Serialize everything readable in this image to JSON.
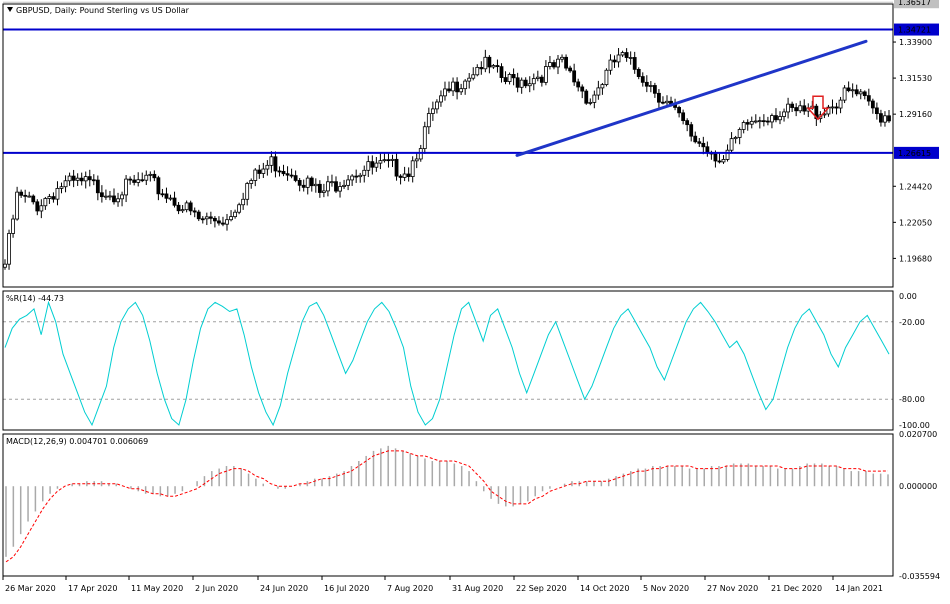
{
  "chart_data": [
    {
      "type": "candlestick",
      "title": "GBPUSD, Daily:  Pound Sterling vs US Dollar",
      "timeframe": "Daily",
      "ylim": [
        1.178,
        1.364
      ],
      "y_ticks": [
        "1.33900",
        "1.31530",
        "1.29160",
        "1.24420",
        "1.22050",
        "1.19680"
      ],
      "current_price": "1.36517",
      "horizontal_levels": [
        {
          "label": "1.34721",
          "value": 1.34721,
          "color": "#0000CC"
        },
        {
          "label": "1.26615",
          "value": 1.26615,
          "color": "#0000CC"
        }
      ],
      "trendline": {
        "from": {
          "x": "22 Sep 2020",
          "y": 1.2645
        },
        "to": {
          "x": "28 Jan 2021",
          "y": 1.3395
        },
        "color": "#1F35C8"
      },
      "down_arrow": {
        "x": "4 Jan 2021",
        "y": 1.2955,
        "color": "#E02020"
      },
      "bar_count": 220,
      "close_anchors": [
        [
          0,
          1.196
        ],
        [
          3,
          1.24
        ],
        [
          8,
          1.235
        ],
        [
          14,
          1.248
        ],
        [
          20,
          1.249
        ],
        [
          27,
          1.243
        ],
        [
          35,
          1.251
        ],
        [
          42,
          1.238
        ],
        [
          48,
          1.225
        ],
        [
          55,
          1.226
        ],
        [
          60,
          1.248
        ],
        [
          66,
          1.263
        ],
        [
          72,
          1.256
        ],
        [
          78,
          1.242
        ],
        [
          86,
          1.257
        ],
        [
          94,
          1.26
        ],
        [
          100,
          1.258
        ],
        [
          106,
          1.296
        ],
        [
          112,
          1.315
        ],
        [
          118,
          1.328
        ],
        [
          124,
          1.316
        ],
        [
          130,
          1.318
        ],
        [
          138,
          1.327
        ],
        [
          145,
          1.304
        ],
        [
          152,
          1.333
        ],
        [
          158,
          1.32
        ],
        [
          164,
          1.302
        ],
        [
          170,
          1.28
        ],
        [
          178,
          1.265
        ],
        [
          184,
          1.288
        ],
        [
          190,
          1.296
        ],
        [
          196,
          1.295
        ],
        [
          202,
          1.297
        ],
        [
          210,
          1.309
        ],
        [
          216,
          1.295
        ],
        [
          219,
          1.294
        ]
      ]
    },
    {
      "type": "line",
      "title": "%R(14) -44.73",
      "series": [
        {
          "name": "%R(14)",
          "color": "#00CED1"
        }
      ],
      "ylim": [
        -100,
        0
      ],
      "levels": [
        -20,
        -80
      ],
      "y_ticks": [
        "0.00",
        "-20.00",
        "-80.00",
        "-100.00"
      ],
      "values": [
        -40,
        -25,
        -18,
        -15,
        -10,
        -30,
        -5,
        -20,
        -45,
        -60,
        -75,
        -90,
        -100,
        -85,
        -70,
        -40,
        -20,
        -10,
        -5,
        -15,
        -35,
        -60,
        -80,
        -95,
        -100,
        -80,
        -50,
        -25,
        -10,
        -5,
        -8,
        -12,
        -10,
        -30,
        -55,
        -75,
        -90,
        -100,
        -85,
        -60,
        -40,
        -20,
        -8,
        -5,
        -15,
        -30,
        -45,
        -60,
        -50,
        -35,
        -20,
        -10,
        -5,
        -12,
        -25,
        -40,
        -70,
        -90,
        -100,
        -95,
        -80,
        -55,
        -30,
        -10,
        -5,
        -20,
        -35,
        -15,
        -10,
        -25,
        -40,
        -60,
        -75,
        -60,
        -45,
        -30,
        -20,
        -35,
        -50,
        -65,
        -80,
        -70,
        -55,
        -40,
        -25,
        -15,
        -10,
        -20,
        -30,
        -40,
        -55,
        -65,
        -50,
        -35,
        -20,
        -10,
        -5,
        -12,
        -20,
        -30,
        -40,
        -35,
        -45,
        -60,
        -75,
        -88,
        -80,
        -60,
        -40,
        -25,
        -15,
        -10,
        -20,
        -30,
        -45,
        -55,
        -40,
        -30,
        -20,
        -15,
        -25,
        -35,
        -45
      ]
    },
    {
      "type": "bar+line",
      "title": "MACD(12,26,9) 0.004701 0.006069",
      "series": [
        {
          "name": "MACD",
          "style": "histogram",
          "color": "#A9A9A9"
        },
        {
          "name": "Signal",
          "style": "dotted-line",
          "color": "#FF0000"
        }
      ],
      "ylim": [
        -0.035594,
        0.0207
      ],
      "y_ticks": [
        "0.020700",
        "0.000000",
        "-0.035594"
      ],
      "macd_values": [
        -0.028,
        -0.024,
        -0.019,
        -0.014,
        -0.01,
        -0.006,
        -0.003,
        -0.001,
        0.0,
        0.001,
        0.001,
        0.002,
        0.002,
        0.002,
        0.001,
        0.001,
        0.0,
        -0.001,
        -0.002,
        -0.003,
        -0.003,
        -0.004,
        -0.004,
        -0.003,
        -0.002,
        0.0,
        0.002,
        0.004,
        0.006,
        0.007,
        0.008,
        0.008,
        0.007,
        0.005,
        0.003,
        0.001,
        0.0,
        -0.001,
        -0.001,
        0.0,
        0.001,
        0.002,
        0.003,
        0.003,
        0.004,
        0.005,
        0.006,
        0.008,
        0.01,
        0.012,
        0.014,
        0.015,
        0.016,
        0.015,
        0.014,
        0.013,
        0.012,
        0.011,
        0.01,
        0.01,
        0.01,
        0.009,
        0.008,
        0.006,
        0.002,
        -0.002,
        -0.005,
        -0.007,
        -0.008,
        -0.008,
        -0.007,
        -0.006,
        -0.004,
        -0.002,
        -0.001,
        0.0,
        0.001,
        0.002,
        0.002,
        0.002,
        0.002,
        0.002,
        0.003,
        0.004,
        0.005,
        0.006,
        0.007,
        0.007,
        0.008,
        0.008,
        0.008,
        0.008,
        0.008,
        0.007,
        0.007,
        0.007,
        0.008,
        0.008,
        0.008,
        0.009,
        0.009,
        0.009,
        0.008,
        0.008,
        0.008,
        0.007,
        0.007,
        0.007,
        0.008,
        0.009,
        0.009,
        0.009,
        0.008,
        0.008,
        0.007,
        0.006,
        0.006,
        0.006,
        0.005,
        0.005,
        0.0047
      ],
      "signal_values": [
        -0.03,
        -0.028,
        -0.024,
        -0.019,
        -0.014,
        -0.009,
        -0.005,
        -0.002,
        0.0,
        0.001,
        0.001,
        0.001,
        0.001,
        0.001,
        0.001,
        0.001,
        0.0,
        -0.001,
        -0.001,
        -0.002,
        -0.003,
        -0.003,
        -0.004,
        -0.004,
        -0.003,
        -0.002,
        -0.001,
        0.001,
        0.003,
        0.005,
        0.006,
        0.007,
        0.007,
        0.006,
        0.004,
        0.003,
        0.001,
        0.0,
        0.0,
        0.0,
        0.001,
        0.001,
        0.002,
        0.003,
        0.003,
        0.004,
        0.005,
        0.006,
        0.008,
        0.01,
        0.012,
        0.013,
        0.014,
        0.014,
        0.014,
        0.013,
        0.012,
        0.012,
        0.011,
        0.01,
        0.01,
        0.01,
        0.009,
        0.008,
        0.005,
        0.002,
        -0.002,
        -0.004,
        -0.006,
        -0.007,
        -0.007,
        -0.007,
        -0.005,
        -0.004,
        -0.002,
        -0.001,
        0.0,
        0.001,
        0.001,
        0.002,
        0.002,
        0.002,
        0.002,
        0.003,
        0.004,
        0.005,
        0.006,
        0.006,
        0.007,
        0.007,
        0.008,
        0.008,
        0.008,
        0.008,
        0.007,
        0.007,
        0.007,
        0.007,
        0.008,
        0.008,
        0.008,
        0.008,
        0.008,
        0.008,
        0.008,
        0.008,
        0.007,
        0.007,
        0.007,
        0.008,
        0.008,
        0.008,
        0.008,
        0.008,
        0.007,
        0.007,
        0.007,
        0.006,
        0.006,
        0.006,
        0.006069
      ]
    }
  ],
  "x_axis_labels": [
    "26 Mar 2020",
    "17 Apr 2020",
    "11 May 2020",
    "2 Jun 2020",
    "24 Jun 2020",
    "16 Jul 2020",
    "7 Aug 2020",
    "31 Aug 2020",
    "22 Sep 2020",
    "14 Oct 2020",
    "5 Nov 2020",
    "27 Nov 2020",
    "21 Dec 2020",
    "14 Jan 2021"
  ],
  "colors": {
    "background": "#FFFFFF",
    "candle": "#000000",
    "level_line": "#0000CC",
    "trend_line": "#1F35C8",
    "wpr": "#00CED1",
    "macd_hist": "#A9A9A9",
    "macd_signal": "#FF0000",
    "grid_dash": "#A0A0A0",
    "label_bg": "#0000CC",
    "current_price_bg": "#C0C0C0"
  }
}
